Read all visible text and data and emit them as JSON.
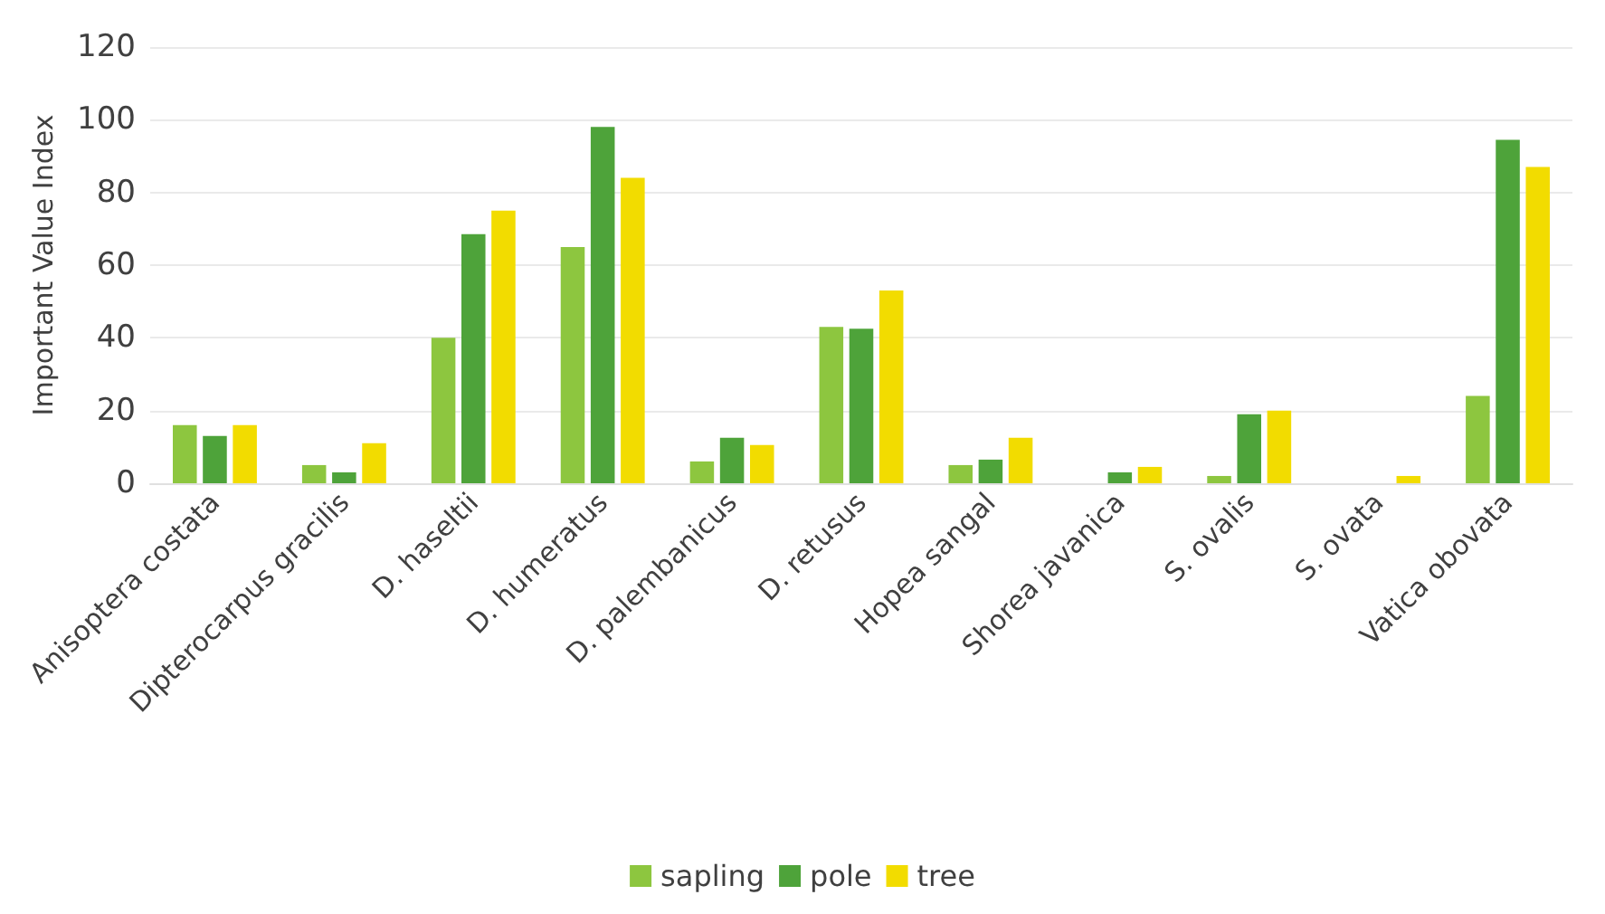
{
  "chart_data": {
    "type": "bar",
    "ylabel": "Important Value Index",
    "categories": [
      "Anisoptera costata",
      "Dipterocarpus gracilis",
      "D. haseltii",
      "D. humeratus",
      "D. palembanicus",
      "D. retusus",
      "Hopea sangal",
      "Shorea javanica",
      "S. ovalis",
      "S. ovata",
      "Vatica obovata"
    ],
    "series": [
      {
        "name": "sapling",
        "color": "#8dc63f",
        "values": [
          16,
          5,
          40,
          65,
          6,
          43,
          5,
          0,
          2,
          0,
          24
        ]
      },
      {
        "name": "pole",
        "color": "#4ea33a",
        "values": [
          13,
          3,
          68.5,
          98,
          12.5,
          42.5,
          6.5,
          3,
          19,
          0,
          94.5
        ]
      },
      {
        "name": "tree",
        "color": "#f2dc00",
        "values": [
          16,
          11,
          75,
          84,
          10.5,
          53,
          12.5,
          4.5,
          20,
          2,
          87
        ]
      }
    ],
    "ylim": [
      0,
      120
    ],
    "yticks": [
      0,
      20,
      40,
      60,
      80,
      100,
      120
    ],
    "grid": "y",
    "legend": "bottom"
  }
}
